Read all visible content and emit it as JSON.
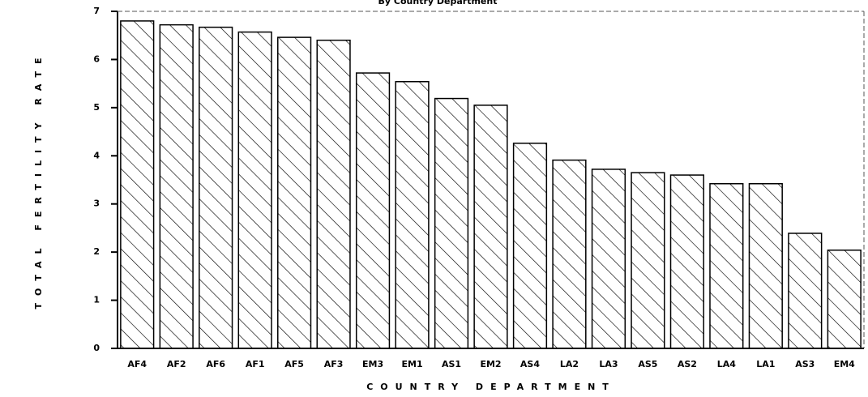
{
  "chart_data": {
    "type": "bar",
    "title": "By Country Department",
    "x_label": "COUNTRY DEPARTMENT",
    "y_label": "TOTAL FERTILITY RATE",
    "categories": [
      "AF4",
      "AF2",
      "AF6",
      "AF1",
      "AF5",
      "AF3",
      "EM3",
      "EM1",
      "AS1",
      "EM2",
      "AS4",
      "LA2",
      "LA3",
      "AS5",
      "AS2",
      "LA4",
      "LA1",
      "AS3",
      "EM4"
    ],
    "values": [
      6.8,
      6.72,
      6.67,
      6.57,
      6.46,
      6.4,
      5.72,
      5.54,
      5.19,
      5.05,
      4.26,
      3.91,
      3.72,
      3.65,
      3.6,
      3.42,
      3.42,
      2.39,
      2.04
    ],
    "color": "#000000",
    "ylim": [
      0,
      7
    ],
    "yticks": [
      0,
      1,
      2,
      3,
      4,
      5,
      6,
      7
    ],
    "grid": false
  }
}
